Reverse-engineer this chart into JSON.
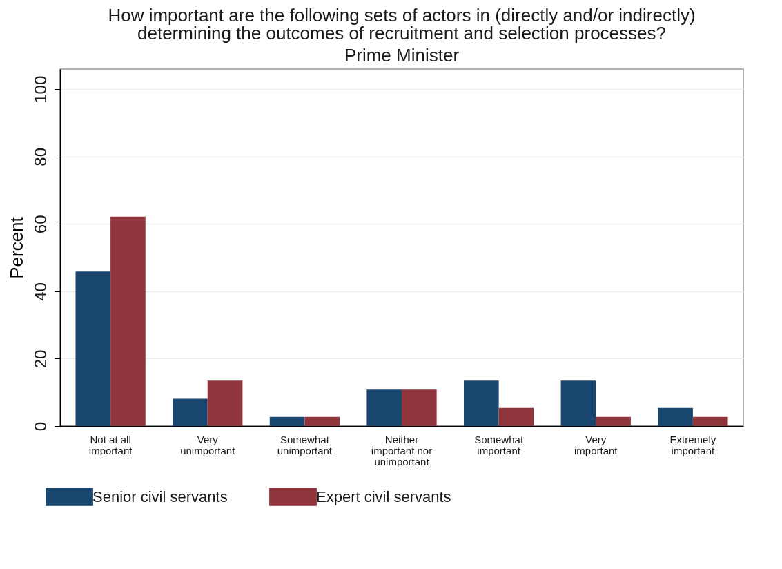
{
  "chart_data": {
    "type": "bar",
    "title": "How important are the following sets of actors in (directly and/or indirectly) determining the outcomes of recruitment and selection processes?",
    "subtitle": "Prime Minister",
    "ylabel": "Percent",
    "categories": [
      "Not at all important",
      "Very unimportant",
      "Somewhat unimportant",
      "Neither important nor unimportant",
      "Somewhat important",
      "Very important",
      "Extremely important"
    ],
    "series": [
      {
        "name": "Senior civil servants",
        "color": "#1a476f",
        "values": [
          45.9,
          8.1,
          2.7,
          10.8,
          13.5,
          13.5,
          5.4
        ]
      },
      {
        "name": "Expert civil servants",
        "color": "#90353b",
        "values": [
          62.2,
          13.5,
          2.7,
          10.8,
          5.4,
          2.7,
          2.7
        ]
      }
    ],
    "ylim": [
      0,
      106
    ],
    "yticks": [
      0,
      20,
      40,
      60,
      80,
      100
    ],
    "grid": "y",
    "legend": "bottom"
  }
}
